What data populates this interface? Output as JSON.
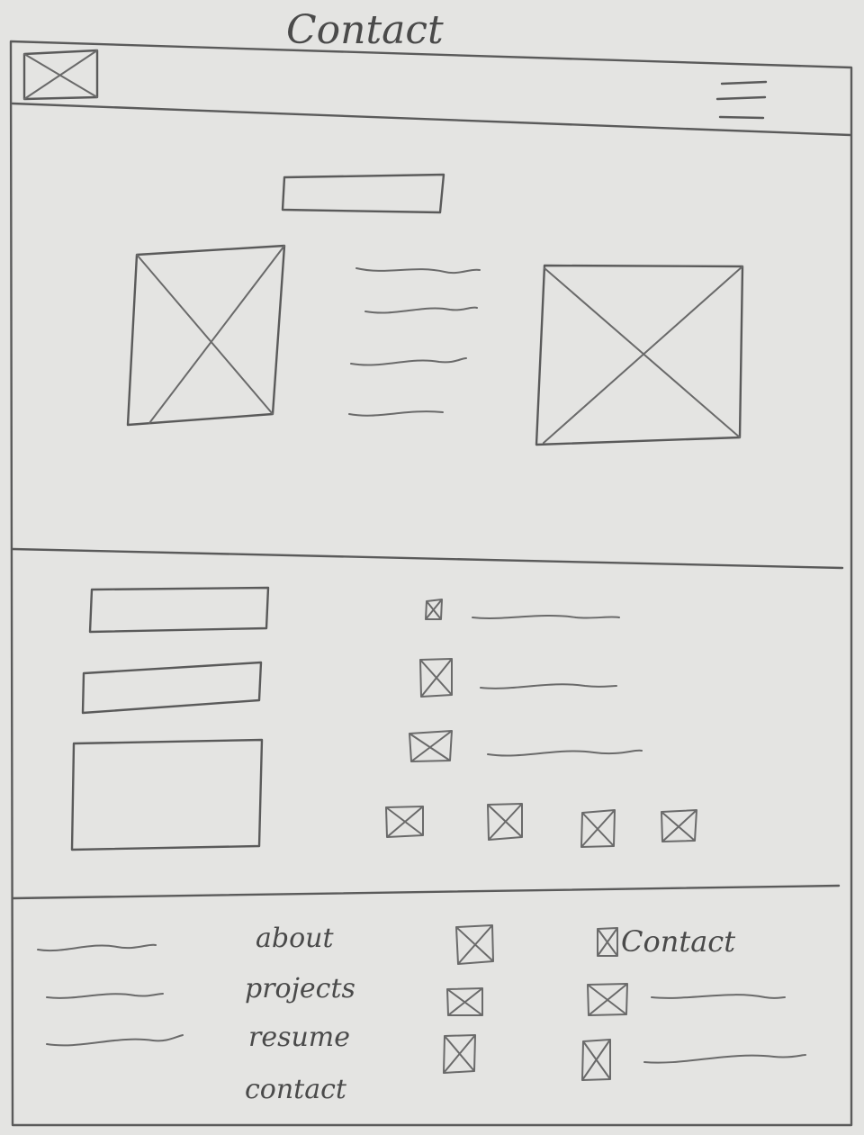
{
  "page": {
    "title": "Contact"
  },
  "footer": {
    "links": [
      "about",
      "projects",
      "resume",
      "contact"
    ],
    "contact_heading": "Contact"
  },
  "colors": {
    "ink": "#5a5a5a",
    "paper": "#e4e4e2"
  },
  "icons": {
    "logo": "placeholder-image-icon",
    "menu": "hamburger-menu-icon",
    "checkbox": "checkbox-crossed-icon"
  }
}
